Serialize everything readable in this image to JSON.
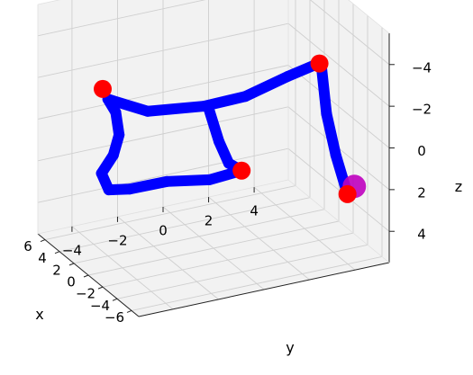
{
  "chart_data": {
    "type": "line3d",
    "title": "",
    "xlabel": "x",
    "ylabel": "y",
    "zlabel": "z",
    "xticks": [
      "−6",
      "−4",
      "−2",
      "0",
      "2",
      "4",
      "6"
    ],
    "yticks": [
      "4",
      "2",
      "0",
      "−2",
      "−4"
    ],
    "zticks": [
      "−4",
      "−2",
      "0",
      "2",
      "4"
    ],
    "xlim": [
      -7,
      7
    ],
    "ylim": [
      -5.5,
      5.5
    ],
    "zlim": [
      -5.5,
      5.5
    ],
    "zaxis_inverted": true,
    "grid": true,
    "path_color": "#0000ff",
    "waypoint_color": "#ff0000",
    "start_marker_color": "#bf00bf",
    "pane_color": "#f2f2f2",
    "path": [
      {
        "x": -1.0,
        "y": -0.5,
        "z": -1.5
      },
      {
        "x": 0.2,
        "y": 0.3,
        "z": 0.5
      },
      {
        "x": 2.0,
        "y": 1.3,
        "z": 2.3
      },
      {
        "x": 4.0,
        "y": 2.5,
        "z": 3.5
      },
      {
        "x": 3.7,
        "y": 1.0,
        "z": 3.5
      },
      {
        "x": 3.3,
        "y": -1.0,
        "z": 3.0
      },
      {
        "x": 2.8,
        "y": -2.8,
        "z": 2.8
      },
      {
        "x": 1.9,
        "y": -4.0,
        "z": 2.3
      },
      {
        "x": 0.7,
        "y": -4.7,
        "z": 1.0
      },
      {
        "x": 0.0,
        "y": -4.4,
        "z": 0.0
      },
      {
        "x": -0.8,
        "y": -4.4,
        "z": -1.2
      },
      {
        "x": -1.6,
        "y": -4.8,
        "z": -2.6
      },
      {
        "x": -2.4,
        "y": -5.4,
        "z": -3.6
      },
      {
        "x": -3.5,
        "y": -4.0,
        "z": -3.0
      },
      {
        "x": -5.0,
        "y": -2.0,
        "z": -3.2
      },
      {
        "x": -6.0,
        "y": -0.5,
        "z": -3.6
      },
      {
        "x": -6.5,
        "y": 1.2,
        "z": -4.3
      },
      {
        "x": -6.7,
        "y": 2.6,
        "z": -4.7
      },
      {
        "x": -6.2,
        "y": 3.0,
        "z": -2.0
      },
      {
        "x": -5.6,
        "y": 3.6,
        "z": 0.3
      },
      {
        "x": -5.0,
        "y": 4.3,
        "z": 2.5
      }
    ],
    "waypoints": [
      {
        "x": -6.8,
        "y": 2.5,
        "z": -4.7
      },
      {
        "x": -2.0,
        "y": -5.5,
        "z": -4.0
      },
      {
        "x": 4.0,
        "y": 2.5,
        "z": 3.5
      },
      {
        "x": -5.0,
        "y": 4.3,
        "z": 2.5
      }
    ],
    "start_marker": {
      "x": -5.0,
      "y": 4.6,
      "z": 2.2
    }
  }
}
